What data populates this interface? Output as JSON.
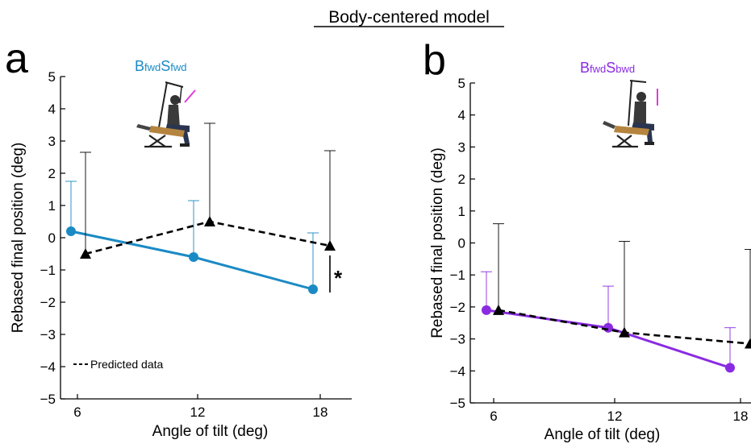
{
  "figure": {
    "title": "Body-centered model",
    "legend_label": "Predicted data",
    "significance_mark": "*"
  },
  "chart_data": [
    {
      "type": "line",
      "panel_label": "a",
      "condition": {
        "prefix": "B",
        "sub1": "fwd",
        "mid": "S",
        "sub2": "fwd"
      },
      "xlabel": "Angle of tilt (deg)",
      "ylabel": "Rebased final position (deg)",
      "xticks": [
        6,
        12,
        18
      ],
      "ylim": [
        -5,
        5
      ],
      "yticks": [
        5,
        4,
        3,
        2,
        1,
        0,
        -1,
        -2,
        -3,
        -4,
        -5
      ],
      "accent_color": "#1a8ac4",
      "series": [
        {
          "x": [
            6,
            12,
            18
          ],
          "y": [
            0.2,
            -0.6,
            -1.6
          ],
          "err_up": [
            1.55,
            1.75,
            1.75
          ],
          "color": "#1a8ac4",
          "style": "solid",
          "marker": "circle"
        },
        {
          "name": "Predicted data",
          "x": [
            6,
            12,
            18
          ],
          "y": [
            -0.5,
            0.5,
            -0.25
          ],
          "err_up": [
            3.15,
            3.05,
            2.95
          ],
          "color": "#000000",
          "style": "dashed",
          "marker": "triangle"
        }
      ],
      "significance_x": 18
    },
    {
      "type": "line",
      "panel_label": "b",
      "condition": {
        "prefix": "B",
        "sub1": "fwd",
        "mid": "S",
        "sub2": "bwd"
      },
      "xlabel": "Angle of tilt (deg)",
      "ylabel": "Rebased final position (deg)",
      "xticks": [
        6,
        12,
        18
      ],
      "ylim": [
        -5,
        5
      ],
      "yticks": [
        5,
        4,
        3,
        2,
        1,
        0,
        -1,
        -2,
        -3,
        -4,
        -5
      ],
      "accent_color": "#8a2be2",
      "series": [
        {
          "x": [
            6,
            12,
            18
          ],
          "y": [
            -2.1,
            -2.65,
            -3.9
          ],
          "err_up": [
            1.2,
            1.3,
            1.25
          ],
          "color": "#8a2be2",
          "style": "solid",
          "marker": "circle"
        },
        {
          "x": [
            6,
            12,
            18
          ],
          "y": [
            -2.1,
            -2.8,
            -3.15
          ],
          "err_up": [
            2.7,
            2.85,
            2.95
          ],
          "color": "#000000",
          "style": "dashed",
          "marker": "triangle"
        }
      ]
    }
  ]
}
